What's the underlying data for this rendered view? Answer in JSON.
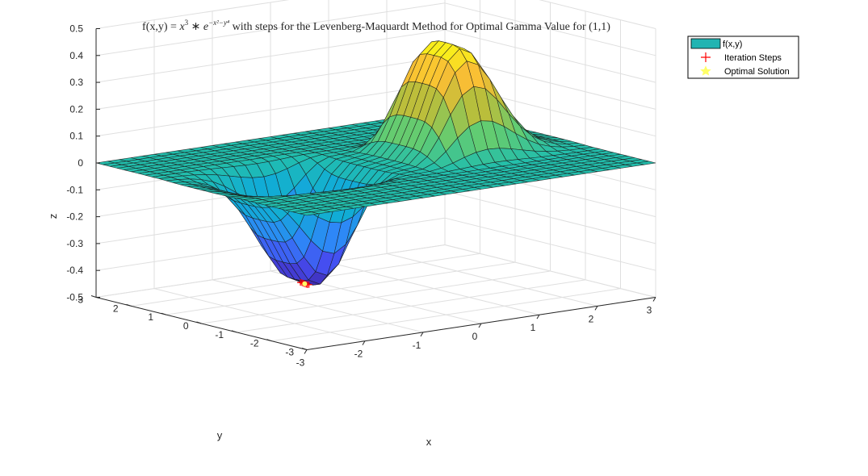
{
  "chart_data": {
    "type": "surface3d",
    "title_prefix": "f(x,y) = ",
    "title_suffix": " with steps for the Levenberg-Maquardt Method for Optimal Gamma Value for (1,1)",
    "title_math": {
      "base1": "x",
      "exp1": "3",
      "op": " ∗ ",
      "base2": "e",
      "exp2": "−x²−y⁴"
    },
    "function": "x^3 * exp(-x^2 - y^4)",
    "xlabel": "x",
    "ylabel": "y",
    "zlabel": "z",
    "xlim": [
      -3,
      3
    ],
    "ylim": [
      -3,
      3
    ],
    "zlim": [
      -0.5,
      0.5
    ],
    "xticks": [
      "-3",
      "-2",
      "-1",
      "0",
      "1",
      "2",
      "3"
    ],
    "yticks": [
      "-3",
      "-2",
      "-1",
      "0",
      "1",
      "2",
      "3"
    ],
    "zticks": [
      "-0.5",
      "-0.4",
      "-0.3",
      "-0.2",
      "-0.1",
      "0",
      "0.1",
      "0.2",
      "0.3",
      "0.4",
      "0.5"
    ],
    "grid": true,
    "colormap": "parula",
    "legend_location": "top-right",
    "series": [
      {
        "name": "f(x,y)",
        "kind": "surface",
        "color": "#22b4b2"
      },
      {
        "name": "Iteration Steps",
        "kind": "markers",
        "marker": "+",
        "color": "#ff0000",
        "points": [
          {
            "x": -1.225,
            "y": 0.0,
            "z": -0.4099
          },
          {
            "x": -1.22,
            "y": 0.05,
            "z": -0.4098
          },
          {
            "x": -1.23,
            "y": -0.05,
            "z": -0.4098
          },
          {
            "x": -1.21,
            "y": 0.1,
            "z": -0.4093
          },
          {
            "x": -1.24,
            "y": -0.1,
            "z": -0.4093
          },
          {
            "x": -1.225,
            "y": 0.12,
            "z": -0.409
          },
          {
            "x": -1.225,
            "y": -0.12,
            "z": -0.409
          }
        ]
      },
      {
        "name": "Optimal Solution",
        "kind": "markers",
        "marker": "pentagram",
        "color": "#ffff66",
        "points": [
          {
            "x": -1.2247,
            "y": 0.0,
            "z": -0.4099
          }
        ]
      }
    ]
  }
}
